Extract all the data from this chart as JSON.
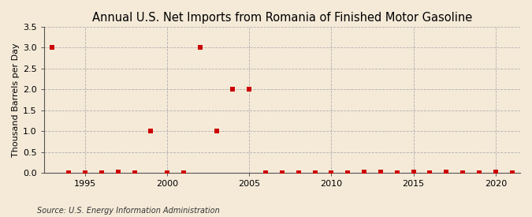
{
  "title": "Annual U.S. Net Imports from Romania of Finished Motor Gasoline",
  "ylabel": "Thousand Barrels per Day",
  "source": "Source: U.S. Energy Information Administration",
  "background_color": "#f5ead8",
  "years": [
    1993,
    1994,
    1995,
    1996,
    1997,
    1998,
    1999,
    2000,
    2001,
    2002,
    2003,
    2004,
    2005,
    2006,
    2007,
    2008,
    2009,
    2010,
    2011,
    2012,
    2013,
    2014,
    2015,
    2016,
    2017,
    2018,
    2019,
    2020,
    2021
  ],
  "values": [
    3.0,
    0,
    0,
    0,
    0.02,
    0,
    1.0,
    0,
    0,
    3.0,
    1.0,
    2.0,
    2.0,
    0,
    0,
    0,
    0,
    0,
    0,
    0.02,
    0.02,
    0,
    0.02,
    0,
    0.02,
    0,
    0,
    0.02,
    0
  ],
  "marker_color": "#cc0000",
  "marker_size": 4,
  "xlim": [
    1992.5,
    2021.5
  ],
  "ylim": [
    0,
    3.5
  ],
  "yticks": [
    0.0,
    0.5,
    1.0,
    1.5,
    2.0,
    2.5,
    3.0,
    3.5
  ],
  "xticks": [
    1995,
    2000,
    2005,
    2010,
    2015,
    2020
  ],
  "grid_color": "#aaaaaa",
  "title_fontsize": 10.5,
  "axis_fontsize": 8,
  "tick_fontsize": 8,
  "source_fontsize": 7
}
